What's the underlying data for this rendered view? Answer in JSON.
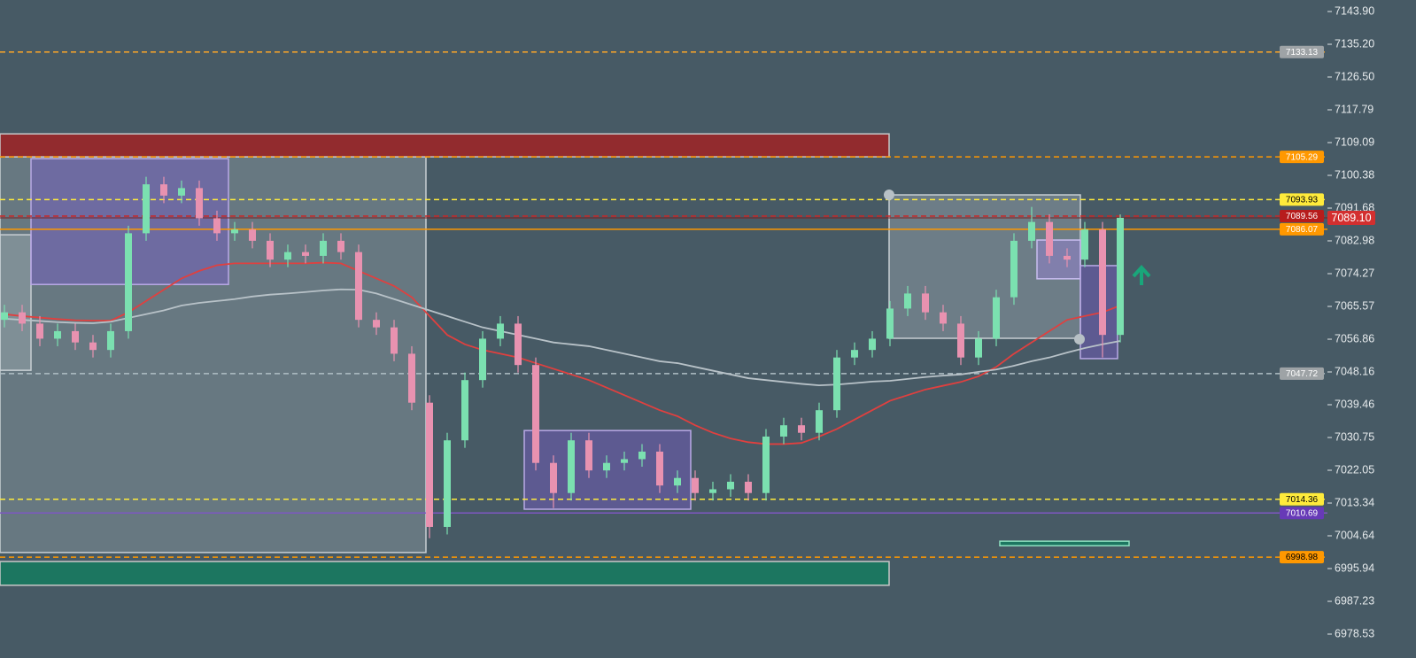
{
  "chart_data": {
    "type": "candlestick",
    "ylim": [
      6972.18,
      7146.96
    ],
    "yticks": [
      {
        "value": 7143.9,
        "label": "7143.90"
      },
      {
        "value": 7135.2,
        "label": "7135.20"
      },
      {
        "value": 7126.5,
        "label": "7126.50"
      },
      7117.79,
      7109.09,
      7100.38,
      7091.68,
      7082.98,
      7074.27,
      7065.57,
      7056.86,
      7048.16,
      7039.46,
      7030.75,
      7022.05,
      7013.34,
      7004.64,
      6995.94,
      6987.23,
      6978.53
    ],
    "up_color": "#7be0b0",
    "down_color": "#e892b0",
    "open": [
      7062,
      7064,
      7061,
      7057,
      7059,
      7056,
      7054,
      7059,
      7085,
      7098,
      7095,
      7097,
      7089,
      7085,
      7086,
      7083,
      7078,
      7080,
      7079,
      7083,
      7080,
      7062,
      7060,
      7053,
      7040,
      7007,
      7030,
      7046,
      7057,
      7061,
      7050,
      7024,
      7016,
      7030,
      7022,
      7024,
      7025,
      7027,
      7018,
      7020,
      7016,
      7017,
      7019,
      7016,
      7031,
      7034,
      7032,
      7038,
      7052,
      7054,
      7057,
      7065,
      7069,
      7064,
      7061,
      7052,
      7057,
      7068,
      7083,
      7088,
      7079,
      7078,
      7086,
      7058
    ],
    "high": [
      7066,
      7066,
      7063,
      7061,
      7061,
      7058,
      7061,
      7087,
      7100,
      7100,
      7099,
      7099,
      7091,
      7088,
      7088,
      7085,
      7082,
      7082,
      7085,
      7085,
      7082,
      7064,
      7062,
      7055,
      7042,
      7032,
      7048,
      7059,
      7063,
      7063,
      7052,
      7026,
      7032,
      7032,
      7026,
      7027,
      7029,
      7029,
      7022,
      7022,
      7019,
      7021,
      7021,
      7033,
      7036,
      7036,
      7040,
      7054,
      7056,
      7059,
      7067,
      7071,
      7071,
      7066,
      7063,
      7059,
      7070,
      7085,
      7092,
      7090,
      7081,
      7088,
      7088,
      7090
    ],
    "low": [
      7060,
      7059,
      7055,
      7055,
      7054,
      7052,
      7052,
      7057,
      7083,
      7093,
      7093,
      7087,
      7083,
      7083,
      7081,
      7076,
      7076,
      7077,
      7077,
      7078,
      7060,
      7058,
      7051,
      7038,
      7004,
      7005,
      7028,
      7044,
      7055,
      7048,
      7022,
      7012,
      7014,
      7020,
      7020,
      7022,
      7023,
      7016,
      7016,
      7014,
      7014,
      7015,
      7014,
      7014,
      7029,
      7030,
      7030,
      7036,
      7050,
      7052,
      7055,
      7063,
      7062,
      7059,
      7050,
      7050,
      7055,
      7066,
      7081,
      7077,
      7076,
      7076,
      7052,
      7056
    ],
    "close": [
      7064,
      7061,
      7057,
      7059,
      7056,
      7054,
      7059,
      7085,
      7098,
      7095,
      7097,
      7089,
      7085,
      7086,
      7083,
      7078,
      7080,
      7079,
      7083,
      7080,
      7062,
      7060,
      7053,
      7040,
      7007,
      7030,
      7046,
      7057,
      7061,
      7050,
      7024,
      7016,
      7030,
      7022,
      7024,
      7025,
      7027,
      7018,
      7020,
      7016,
      7017,
      7019,
      7016,
      7031,
      7034,
      7032,
      7038,
      7052,
      7054,
      7057,
      7065,
      7069,
      7064,
      7061,
      7052,
      7057,
      7068,
      7083,
      7088,
      7079,
      7078,
      7086,
      7058,
      7089.1
    ],
    "series": [
      {
        "color": "#e0403f",
        "values": [
          7063.5,
          7063,
          7062.6,
          7062.2,
          7061.9,
          7061.8,
          7061.8,
          7064,
          7067,
          7070,
          7073,
          7075,
          7076.5,
          7077,
          7077,
          7077,
          7077,
          7077,
          7077.2,
          7077,
          7075,
          7073,
          7071,
          7068,
          7063,
          7058,
          7055.5,
          7054,
          7053,
          7052,
          7050.5,
          7049,
          7047.5,
          7046,
          7044,
          7042,
          7040,
          7038,
          7036.4,
          7034,
          7032,
          7030.5,
          7029.5,
          7029,
          7029,
          7029.3,
          7031,
          7033,
          7035.5,
          7038,
          7040.5,
          7042,
          7043.5,
          7044.5,
          7045.5,
          7047,
          7049.5,
          7053,
          7056,
          7059,
          7062,
          7063,
          7064,
          7065.8
        ]
      },
      {
        "color": "#b8c2c8",
        "values": [
          7062.3,
          7062,
          7061.7,
          7061.4,
          7061.2,
          7061.1,
          7061.5,
          7062.5,
          7063.5,
          7064.5,
          7065.8,
          7066.5,
          7067,
          7067.5,
          7068.2,
          7068.7,
          7069,
          7069.4,
          7069.8,
          7070.1,
          7070,
          7069,
          7067.5,
          7066,
          7064.5,
          7063,
          7061.5,
          7060,
          7059,
          7058,
          7057,
          7056,
          7055.5,
          7055,
          7054,
          7053,
          7052,
          7051,
          7050.5,
          7049.5,
          7048.5,
          7047.5,
          7046.5,
          7046,
          7045.5,
          7045,
          7044.6,
          7044.8,
          7045.2,
          7045.6,
          7045.8,
          7046.3,
          7046.8,
          7047.2,
          7047.5,
          7048.2,
          7048.8,
          7049.8,
          7051,
          7052,
          7053.3,
          7054.5,
          7055.5,
          7056.4
        ]
      }
    ],
    "zones": [
      {
        "top": 7105.3,
        "bottom": 7000.2,
        "fill": "rgba(200,210,215,0.25)",
        "stroke": "#c8cfd3"
      },
      {
        "top": 7084.6,
        "bottom": 7048.6,
        "fill": "rgba(200,210,215,0.25)",
        "stroke": "#c8cfd3"
      },
      {
        "top": 7104.8,
        "bottom": 7071.4,
        "fill": "rgba(120,90,200,0.45)",
        "stroke": "#b9a9e6"
      },
      {
        "top": 7032.6,
        "bottom": 7011.7,
        "fill": "rgba(120,90,200,0.45)",
        "stroke": "#b9a9e6"
      },
      {
        "top": 7095.2,
        "bottom": 7057.1,
        "fill": "rgba(200,210,215,0.3)",
        "stroke": "#c8cfd3"
      },
      {
        "top": 7083.2,
        "bottom": 7072.9,
        "fill": "rgba(150,130,210,0.5)",
        "stroke": "#c9bdf0"
      },
      {
        "top": 7076.4,
        "bottom": 7051.7,
        "fill": "rgba(120,90,200,0.45)",
        "stroke": "#b9a9e6"
      },
      {
        "top": 7111.4,
        "bottom": 7105.3,
        "fill": "#922b2e",
        "stroke": "#c7c7c7"
      },
      {
        "top": 6997.8,
        "bottom": 6991.5,
        "fill": "#1c7660",
        "stroke": "#c7c7c7"
      },
      {
        "top": 7003.2,
        "bottom": 7002.0,
        "fill": "#1c7660",
        "stroke": "#8fe0c0"
      }
    ],
    "levels": [
      {
        "value": 7133.13,
        "color": "#ffa726",
        "style": "dashed",
        "label_bg": "#9ea3a6",
        "label_color": "#ffffff"
      },
      {
        "value": 7105.29,
        "color": "#ff9800",
        "style": "dashed",
        "label_bg": "#ff9800",
        "label_color": "#ffffff"
      },
      {
        "value": 7093.93,
        "color": "#ffeb3b",
        "style": "dashed",
        "label_bg": "#ffeb3b",
        "label_color": "#000000"
      },
      {
        "value": 7089.56,
        "color": "#c62828",
        "style": "dashed",
        "label_bg": "#b71c1c",
        "label_color": "#ffffff"
      },
      {
        "value": 7086.07,
        "color": "#ff9800",
        "style": "solid",
        "label_bg": "#ff9800",
        "label_color": "#ffffff"
      },
      {
        "value": 7047.72,
        "color": "#b0bec5",
        "style": "dashed",
        "label_bg": "#9ea3a6",
        "label_color": "#ffffff"
      },
      {
        "value": 7014.36,
        "color": "#ffeb3b",
        "style": "dashed",
        "label_bg": "#ffeb3b",
        "label_color": "#000000"
      },
      {
        "value": 7010.69,
        "color": "#7e57c2",
        "style": "solid",
        "label_bg": "#673ab7",
        "label_color": "#ffffff"
      },
      {
        "value": 6998.98,
        "color": "#ff9800",
        "style": "dashed",
        "label_bg": "#ff9800",
        "label_color": "#000000"
      }
    ],
    "last_price": {
      "value": 7089.1,
      "label": "7089.10",
      "color": "#d32f2f"
    }
  }
}
